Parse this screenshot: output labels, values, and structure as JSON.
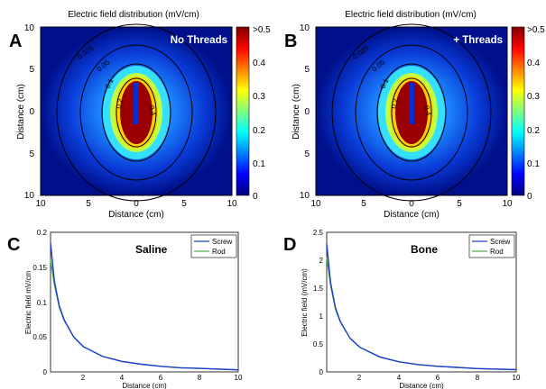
{
  "heatmaps": [
    {
      "letter": "A",
      "title": "Electric field distribution (mV/cm)",
      "badge": "No Threads",
      "xticks": [
        "10",
        "5",
        "0",
        "5",
        "10"
      ],
      "yticks": [
        "10",
        "5",
        "0",
        "5",
        "10"
      ],
      "xlabel": "Distance (cm)",
      "ylabel": "Distance (cm)",
      "cbar_ticks": [
        ">0.5",
        "0.4",
        "0.3",
        "0.2",
        "0.1",
        "0"
      ],
      "contour_labels": [
        "0.025",
        "0.05",
        "0.1",
        "0.2",
        "0.4"
      ]
    },
    {
      "letter": "B",
      "title": "Electric field distribution (mV/cm)",
      "badge": "+ Threads",
      "xticks": [
        "10",
        "5",
        "0",
        "5",
        "10"
      ],
      "yticks": [
        "10",
        "5",
        "0",
        "5",
        "10"
      ],
      "xlabel": "Distance (cm)",
      "ylabel": "Distance (cm)",
      "cbar_ticks": [
        ">0.5",
        "0.4",
        "0.3",
        "0.2",
        "0.1",
        "0"
      ],
      "contour_labels": [
        "0.025",
        "0.05",
        "0.1",
        "0.2",
        "0.4"
      ]
    }
  ],
  "lines": [
    {
      "letter": "C",
      "label": "Saline",
      "yticks": [
        "0.2",
        "0.15",
        "0.1",
        "0.05",
        "0"
      ],
      "xticks": [
        "2",
        "4",
        "6",
        "8",
        "10"
      ],
      "xlabel": "Distance (cm)",
      "ylabel": "Electric field mV/cm",
      "legend": [
        "Screw",
        "Rod"
      ]
    },
    {
      "letter": "D",
      "label": "Bone",
      "yticks": [
        "2.5",
        "2",
        "1.5",
        "1",
        "0.5",
        "0"
      ],
      "xticks": [
        "2",
        "4",
        "6",
        "8",
        "10"
      ],
      "xlabel": "Distance (cm)",
      "ylabel": "Electric field (mV/cm)",
      "legend": [
        "Screw",
        "Rod"
      ]
    }
  ],
  "colors": {
    "screw": "#1f3fd0",
    "rod": "#4caf50",
    "contour": "#000000",
    "badge": "#ffffff"
  },
  "chart_data": [
    {
      "type": "heatmap",
      "title": "Electric field distribution (mV/cm)",
      "xlabel": "Distance (cm)",
      "ylabel": "Distance (cm)",
      "xlim": [
        -10,
        10
      ],
      "ylim": [
        -10,
        10
      ],
      "colorbar_range": [
        0,
        0.5
      ],
      "colorbar_top_label": ">0.5",
      "contour_levels": [
        0.025,
        0.05,
        0.1,
        0.2,
        0.4
      ],
      "annotation": "No Threads"
    },
    {
      "type": "heatmap",
      "title": "Electric field distribution (mV/cm)",
      "xlabel": "Distance (cm)",
      "ylabel": "Distance (cm)",
      "xlim": [
        -10,
        10
      ],
      "ylim": [
        -10,
        10
      ],
      "colorbar_range": [
        0,
        0.5
      ],
      "colorbar_top_label": ">0.5",
      "contour_levels": [
        0.025,
        0.05,
        0.1,
        0.2,
        0.4
      ],
      "annotation": "+ Threads"
    },
    {
      "type": "line",
      "annotation": "Saline",
      "xlabel": "Distance (cm)",
      "ylabel": "Electric field mV/cm",
      "xlim": [
        0.3,
        10
      ],
      "ylim": [
        0,
        0.2
      ],
      "x": [
        0.3,
        0.5,
        0.75,
        1,
        1.5,
        2,
        3,
        4,
        5,
        6,
        7,
        8,
        9,
        10
      ],
      "series": [
        {
          "name": "Screw",
          "values": [
            0.185,
            0.13,
            0.095,
            0.075,
            0.05,
            0.036,
            0.022,
            0.015,
            0.011,
            0.008,
            0.006,
            0.005,
            0.004,
            0.003
          ]
        },
        {
          "name": "Rod",
          "values": [
            0.16,
            0.125,
            0.093,
            0.074,
            0.05,
            0.036,
            0.022,
            0.015,
            0.011,
            0.008,
            0.006,
            0.005,
            0.004,
            0.003
          ]
        }
      ]
    },
    {
      "type": "line",
      "annotation": "Bone",
      "xlabel": "Distance (cm)",
      "ylabel": "Electric field (mV/cm)",
      "xlim": [
        0.3,
        10
      ],
      "ylim": [
        0,
        2.5
      ],
      "x": [
        0.3,
        0.5,
        0.75,
        1,
        1.5,
        2,
        3,
        4,
        5,
        6,
        7,
        8,
        9,
        10
      ],
      "series": [
        {
          "name": "Screw",
          "values": [
            2.3,
            1.6,
            1.15,
            0.9,
            0.6,
            0.44,
            0.27,
            0.18,
            0.13,
            0.1,
            0.08,
            0.06,
            0.05,
            0.04
          ]
        },
        {
          "name": "Rod",
          "values": [
            2.05,
            1.55,
            1.12,
            0.89,
            0.6,
            0.44,
            0.27,
            0.18,
            0.13,
            0.1,
            0.08,
            0.06,
            0.05,
            0.04
          ]
        }
      ]
    }
  ]
}
